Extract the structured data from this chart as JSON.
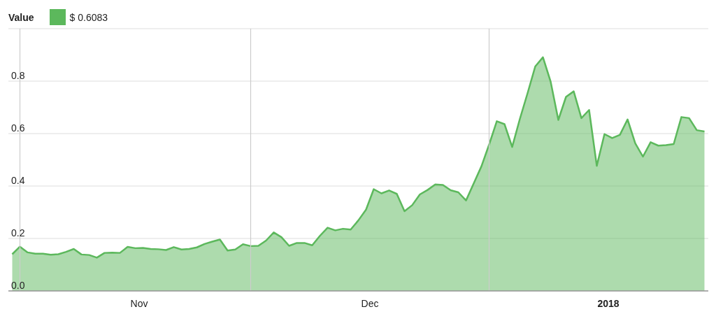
{
  "chart_data": {
    "type": "area",
    "x": [
      "2017-10-31",
      "2017-11-01",
      "2017-11-02",
      "2017-11-03",
      "2017-11-04",
      "2017-11-05",
      "2017-11-06",
      "2017-11-07",
      "2017-11-08",
      "2017-11-09",
      "2017-11-10",
      "2017-11-11",
      "2017-11-12",
      "2017-11-13",
      "2017-11-14",
      "2017-11-15",
      "2017-11-16",
      "2017-11-17",
      "2017-11-18",
      "2017-11-19",
      "2017-11-20",
      "2017-11-21",
      "2017-11-22",
      "2017-11-23",
      "2017-11-24",
      "2017-11-25",
      "2017-11-26",
      "2017-11-27",
      "2017-11-28",
      "2017-11-29",
      "2017-11-30",
      "2017-12-01",
      "2017-12-02",
      "2017-12-03",
      "2017-12-04",
      "2017-12-05",
      "2017-12-06",
      "2017-12-07",
      "2017-12-08",
      "2017-12-09",
      "2017-12-10",
      "2017-12-11",
      "2017-12-12",
      "2017-12-13",
      "2017-12-14",
      "2017-12-15",
      "2017-12-16",
      "2017-12-17",
      "2017-12-18",
      "2017-12-19",
      "2017-12-20",
      "2017-12-21",
      "2017-12-22",
      "2017-12-23",
      "2017-12-24",
      "2017-12-25",
      "2017-12-26",
      "2017-12-27",
      "2017-12-28",
      "2017-12-29",
      "2017-12-30",
      "2017-12-31",
      "2018-01-01",
      "2018-01-02",
      "2018-01-03",
      "2018-01-04",
      "2018-01-05",
      "2018-01-06",
      "2018-01-07",
      "2018-01-08",
      "2018-01-09",
      "2018-01-10",
      "2018-01-11",
      "2018-01-12",
      "2018-01-13",
      "2018-01-14",
      "2018-01-15",
      "2018-01-16",
      "2018-01-17",
      "2018-01-18",
      "2018-01-19",
      "2018-01-20",
      "2018-01-21",
      "2018-01-22",
      "2018-01-23",
      "2018-01-24",
      "2018-01-25",
      "2018-01-26",
      "2018-01-27",
      "2018-01-28",
      "2018-01-29"
    ],
    "series": [
      {
        "name": "$ 0.6083",
        "color": "#5cb85c",
        "values": [
          0.14,
          0.169,
          0.147,
          0.142,
          0.142,
          0.138,
          0.14,
          0.149,
          0.16,
          0.139,
          0.137,
          0.127,
          0.145,
          0.146,
          0.145,
          0.168,
          0.163,
          0.164,
          0.16,
          0.159,
          0.156,
          0.167,
          0.158,
          0.16,
          0.166,
          0.179,
          0.188,
          0.196,
          0.154,
          0.158,
          0.178,
          0.171,
          0.172,
          0.192,
          0.223,
          0.205,
          0.172,
          0.183,
          0.183,
          0.174,
          0.21,
          0.241,
          0.231,
          0.237,
          0.234,
          0.269,
          0.31,
          0.388,
          0.372,
          0.383,
          0.37,
          0.304,
          0.327,
          0.368,
          0.385,
          0.406,
          0.404,
          0.384,
          0.376,
          0.345,
          0.41,
          0.475,
          0.558,
          0.647,
          0.636,
          0.549,
          0.656,
          0.754,
          0.856,
          0.891,
          0.798,
          0.652,
          0.74,
          0.761,
          0.659,
          0.69,
          0.477,
          0.598,
          0.583,
          0.595,
          0.654,
          0.563,
          0.512,
          0.567,
          0.554,
          0.556,
          0.56,
          0.663,
          0.659,
          0.613,
          0.608
        ]
      }
    ],
    "xlim": [
      "2017-10-30T12:00",
      "2018-01-29T12:00"
    ],
    "xticks": [
      {
        "value": "2017-11-16T12:00",
        "label": "Nov"
      },
      {
        "value": "2017-12-16T12:00",
        "label": "Dec"
      },
      {
        "value": "2018-01-16T12:00",
        "label": "2018"
      }
    ],
    "ylim": [
      0,
      1
    ],
    "yticks": [
      {
        "value": 0,
        "label": "0.0"
      },
      0.2,
      0.4,
      0.6,
      0.8,
      {
        "value": 1,
        "label": null
      }
    ],
    "grid": "y",
    "legend": "top left",
    "legend_title": "Value",
    "ref_lines": [
      {
        "axis": "x",
        "value": "2017-11-01",
        "color": "#cccccc"
      },
      {
        "axis": "x",
        "value": "2017-12-01",
        "color": "#cccccc"
      },
      {
        "axis": "x",
        "value": "2018-01-01",
        "color": "#cccccc"
      }
    ]
  }
}
